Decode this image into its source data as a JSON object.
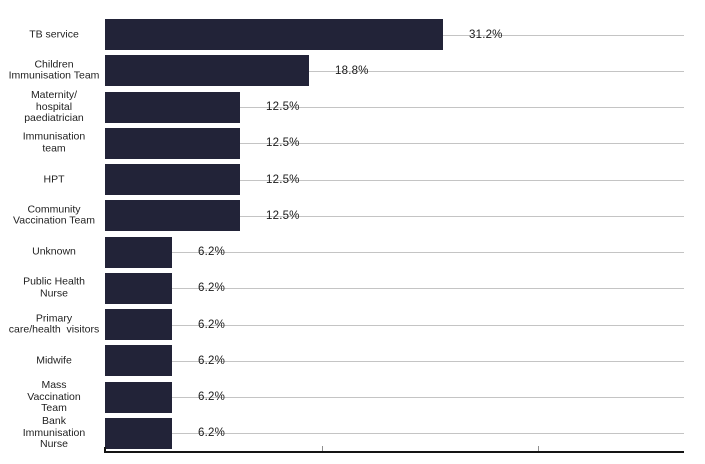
{
  "chart_data": {
    "type": "bar",
    "orientation": "horizontal",
    "title": "",
    "xlabel": "",
    "ylabel": "",
    "categories": [
      "TB service",
      "Children\nImmunisation Team",
      "Maternity/\nhospital\npaediatrician",
      "Immunisation\nteam",
      "HPT",
      "Community\nVaccination Team",
      "Unknown",
      "Public Health\nNurse",
      "Primary\ncare/health  visitors",
      "Midwife",
      "Mass\nVaccination\nTeam",
      "Bank\nImmunisation\nNurse"
    ],
    "values": [
      31.2,
      18.8,
      12.5,
      12.5,
      12.5,
      12.5,
      6.2,
      6.2,
      6.2,
      6.2,
      6.2,
      6.2
    ],
    "value_labels": [
      "31.2%",
      "18.8%",
      "12.5%",
      "12.5%",
      "12.5%",
      "12.5%",
      "6.2%",
      "6.2%",
      "6.2%",
      "6.2%",
      "6.2%",
      "6.2%"
    ],
    "xlim": [
      0,
      53.5
    ],
    "x_ticks_percent": [
      0,
      20,
      40
    ],
    "grid": "off",
    "legend": "none",
    "bar_color": "#222338",
    "leader_line_color": "#c4c4c4",
    "axis_color": "#141414",
    "tick_color": "#8f8f8f",
    "text_color": "#1f1f1f"
  }
}
